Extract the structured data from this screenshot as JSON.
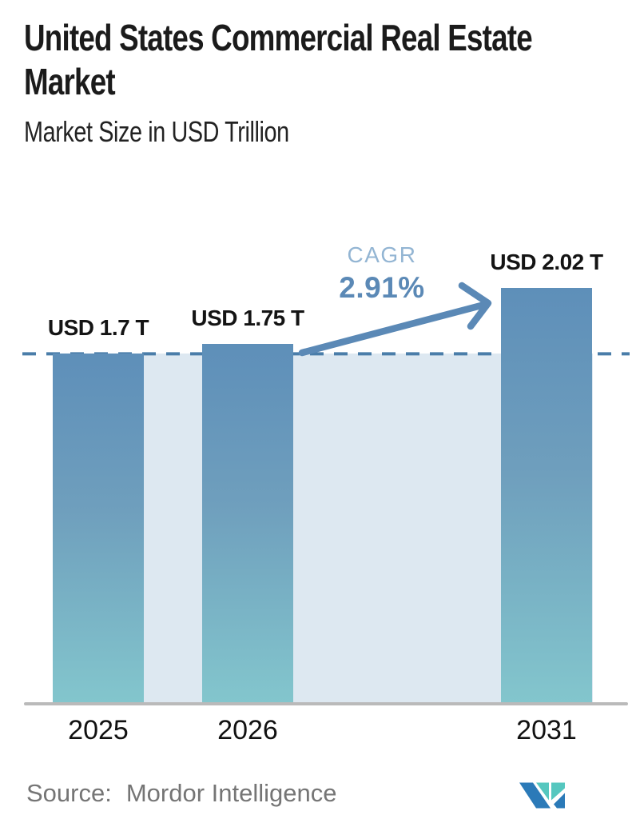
{
  "header": {
    "title": "United States Commercial Real Estate Market",
    "subtitle": "Market Size in USD Trillion"
  },
  "chart_data": {
    "type": "bar",
    "categories": [
      "2025",
      "2026",
      "2031"
    ],
    "values": [
      1.7,
      1.75,
      2.02
    ],
    "bar_labels": [
      "USD 1.7 T",
      "USD 1.75 T",
      "USD 2.02 T"
    ],
    "title": "United States Commercial Real Estate Market",
    "ylabel": "Market Size in USD Trillion",
    "unit": "USD Trillion",
    "ylim": [
      0,
      3.4
    ],
    "grid": false,
    "reference_line": {
      "value": 1.7,
      "style": "dashed"
    },
    "annotation": {
      "label": "CAGR",
      "value": "2.91%",
      "arrow_from": "2026",
      "arrow_to": "2031"
    }
  },
  "annotation": {
    "cagr_label": "CAGR",
    "cagr_value": "2.91%"
  },
  "footer": {
    "source_label": "Source:",
    "source_name": "Mordor Intelligence",
    "logo_name": "mordor-intelligence-logo"
  },
  "colors": {
    "bar_gradient_top": "#5e8fb9",
    "bar_gradient_bottom": "#83c6cd",
    "plot_background": "#dde8f1",
    "dashed_line": "#4a7da9",
    "arrow": "#5b89b6",
    "cagr_label_text": "#93b5d3",
    "cagr_value_text": "#5b89b6",
    "axis_line": "#bababa",
    "title_text": "#1b1b1b",
    "source_text": "#757575",
    "logo_blue": "#2b7ab8",
    "logo_teal": "#55c7bf"
  }
}
